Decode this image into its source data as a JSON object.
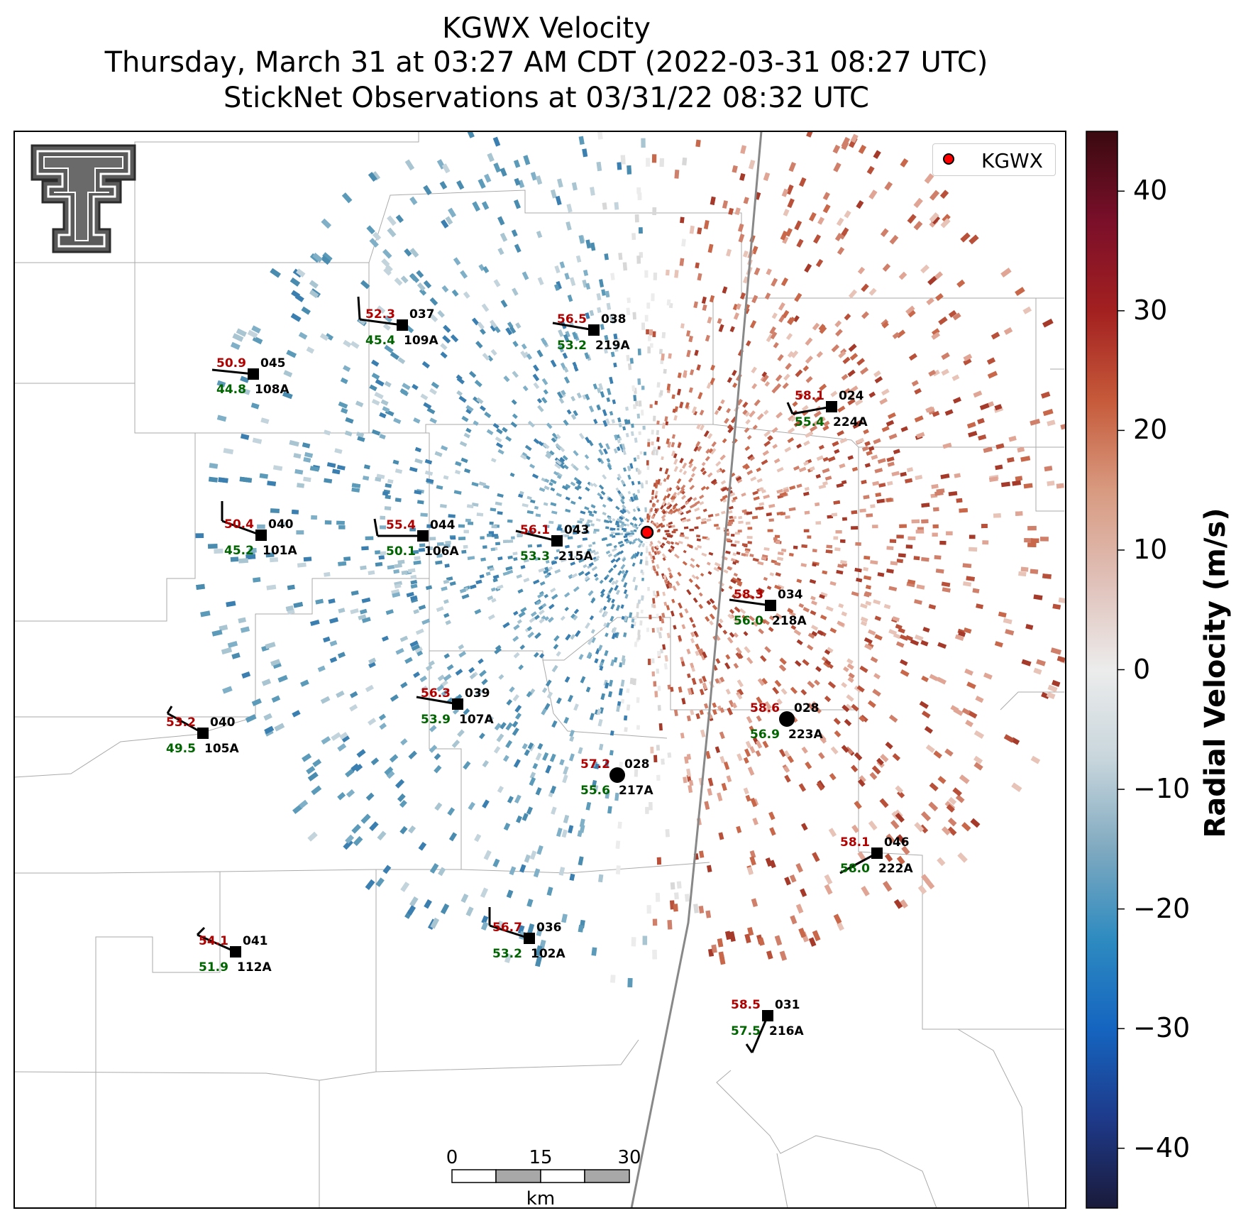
{
  "title": {
    "line1": "KGWX Velocity",
    "line2": "Thursday, March 31 at 03:27 AM CDT (2022-03-31 08:27 UTC)",
    "line3": "StickNet Observations at 03/31/22 08:32 UTC"
  },
  "legend": {
    "label": "KGWX",
    "marker_color": "#ff0000"
  },
  "colorbar": {
    "label": "Radial Velocity (m/s)",
    "ticks": [
      "40",
      "30",
      "20",
      "10",
      "0",
      "−10",
      "−20",
      "−30",
      "−40"
    ],
    "range": [
      -45,
      45
    ],
    "colors": [
      "#1a1a3a",
      "#1e3a8a",
      "#1565c0",
      "#2e8bc0",
      "#7fa9c0",
      "#c8d6dc",
      "#ececec",
      "#e0c0b8",
      "#d89a80",
      "#c65a3a",
      "#a32020",
      "#7a0f2a",
      "#3a0a10"
    ]
  },
  "scale_bar": {
    "ticks": [
      "0",
      "15",
      "30"
    ],
    "unit": "km"
  },
  "stations": [
    {
      "id": "109A",
      "temp": "52.3",
      "dew": "45.4",
      "dir": "037"
    },
    {
      "id": "219A",
      "temp": "56.5",
      "dew": "53.2",
      "dir": "038"
    },
    {
      "id": "108A",
      "temp": "50.9",
      "dew": "44.8",
      "dir": "045"
    },
    {
      "id": "224A",
      "temp": "58.1",
      "dew": "55.4",
      "dir": "024"
    },
    {
      "id": "101A",
      "temp": "50.4",
      "dew": "45.2",
      "dir": "040"
    },
    {
      "id": "106A",
      "temp": "55.4",
      "dew": "50.1",
      "dir": "044"
    },
    {
      "id": "215A",
      "temp": "56.1",
      "dew": "53.3",
      "dir": "043"
    },
    {
      "id": "218A",
      "temp": "58.3",
      "dew": "56.0",
      "dir": "034"
    },
    {
      "id": "107A",
      "temp": "56.3",
      "dew": "53.9",
      "dir": "039"
    },
    {
      "id": "223A",
      "temp": "58.6",
      "dew": "56.9",
      "dir": "028"
    },
    {
      "id": "105A",
      "temp": "53.2",
      "dew": "49.5",
      "dir": "040"
    },
    {
      "id": "217A",
      "temp": "57.2",
      "dew": "55.6",
      "dir": "028"
    },
    {
      "id": "222A",
      "temp": "58.1",
      "dew": "58.0",
      "dir": "046"
    },
    {
      "id": "102A",
      "temp": "56.7",
      "dew": "53.2",
      "dir": "036"
    },
    {
      "id": "112A",
      "temp": "54.1",
      "dew": "51.9",
      "dir": "041"
    },
    {
      "id": "216A",
      "temp": "58.5",
      "dew": "57.5",
      "dir": "031"
    }
  ]
}
